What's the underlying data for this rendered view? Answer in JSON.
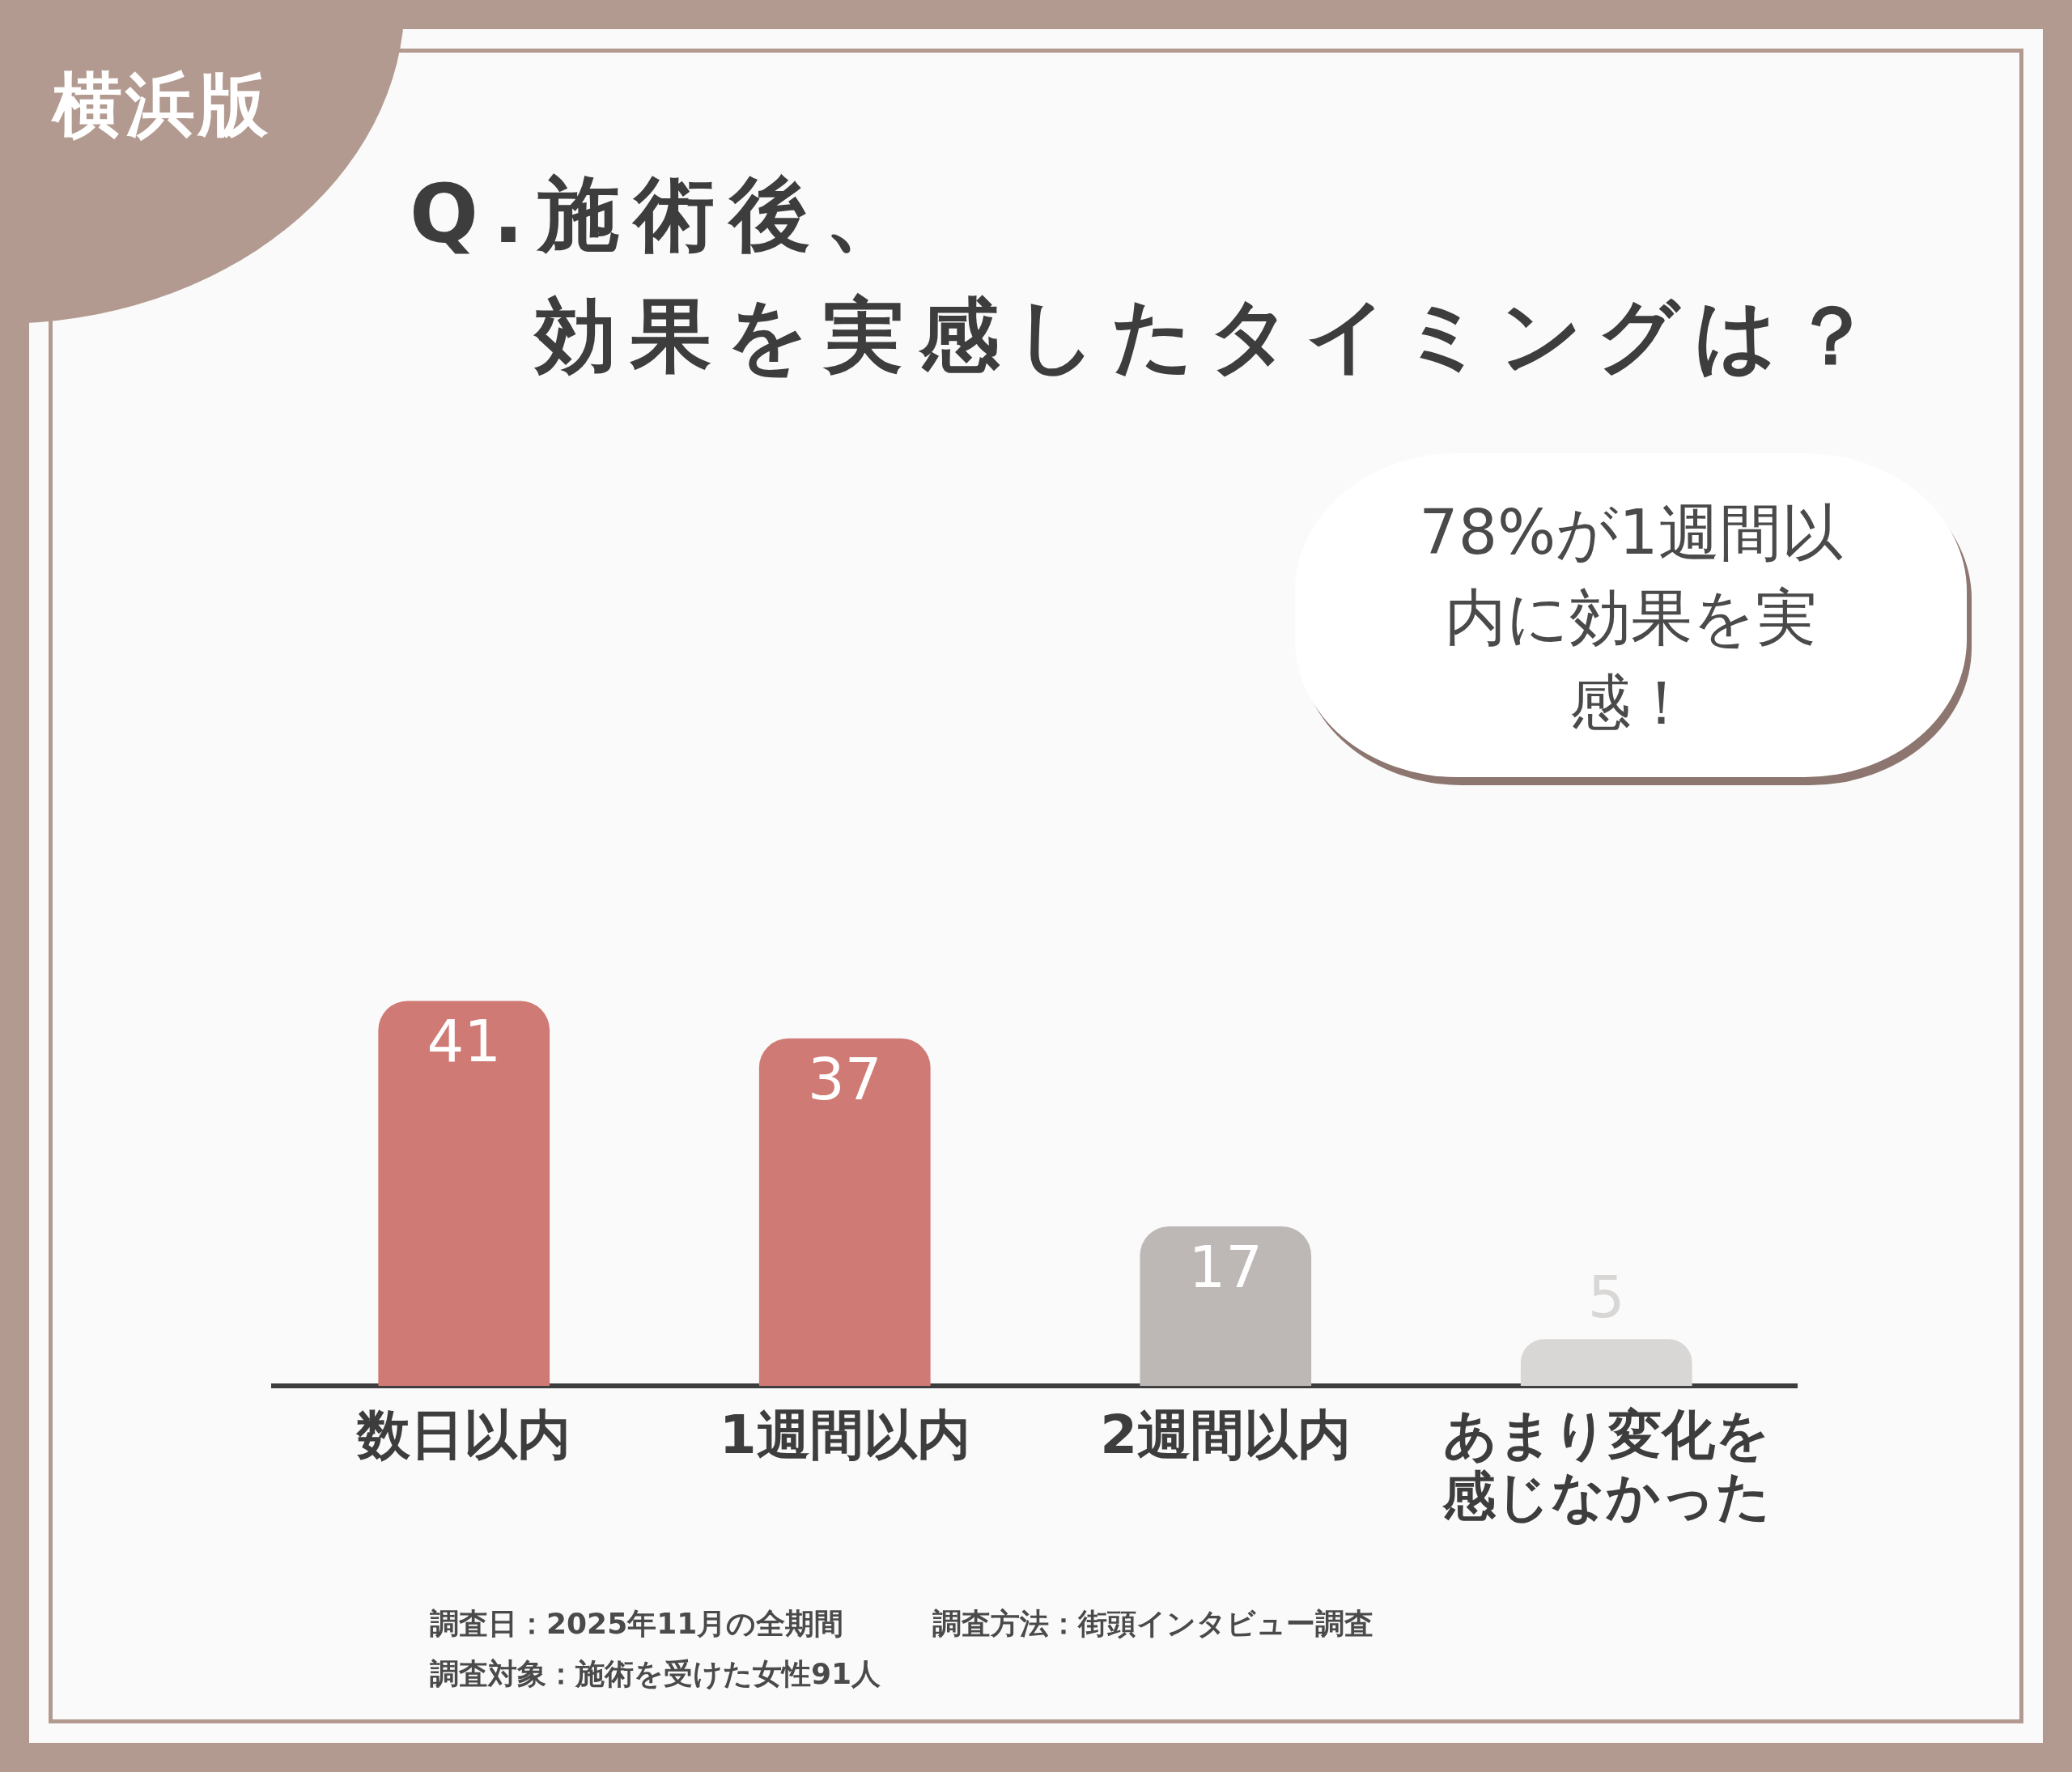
{
  "chart_data": {
    "type": "bar",
    "title": "Q.施術後、効果を実感したタイミングは？",
    "categories": [
      "数日以内",
      "1週間以内",
      "2週間以内",
      "あまり変化を感じなかった"
    ],
    "values": [
      41,
      37,
      17,
      5
    ],
    "colors": [
      "#cf7a74",
      "#cf7a74",
      "#bdb8b6",
      "#d9d7d6"
    ],
    "tick_labels": "x",
    "grid": false,
    "legend": false,
    "data_labels": true,
    "annotations": [
      "横浜版",
      "78%が1週間以内に効果を実感！",
      "調査日：2025年11月の全期間",
      "調査方法：街頭インタビュー調査",
      "調査対象：施術を受けた女性91人"
    ]
  }
}
